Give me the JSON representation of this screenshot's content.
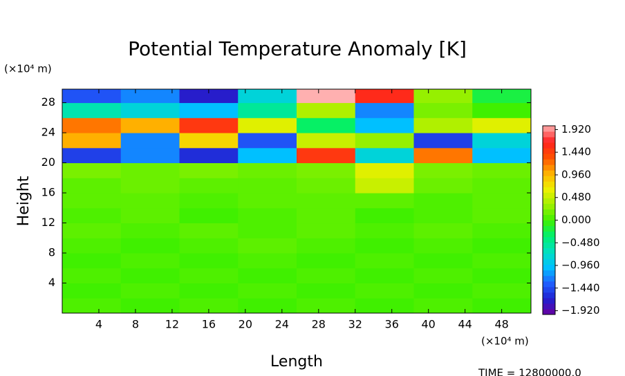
{
  "chart_data": {
    "type": "heatmap",
    "title": "Potential Temperature Anomaly [K]",
    "x_label": "Length",
    "y_label": "Height",
    "x_unit": "(×10⁴ m)",
    "y_unit": "(×10⁴ m)",
    "footer": "TIME = 12800000.0",
    "xlim": [
      0,
      51.2
    ],
    "ylim": [
      0,
      29.8
    ],
    "xticks": [
      4,
      8,
      12,
      16,
      20,
      24,
      28,
      32,
      36,
      40,
      44,
      48
    ],
    "yticks": [
      4,
      8,
      12,
      16,
      20,
      24,
      28
    ],
    "xedges": [
      0,
      6.4,
      12.8,
      19.2,
      25.6,
      32,
      38.4,
      44.8,
      51.2
    ],
    "yedges": [
      0,
      2,
      4,
      6,
      8,
      10,
      12,
      14,
      16,
      18,
      20,
      22,
      24,
      26,
      28,
      29.8
    ],
    "z": [
      [
        0.05,
        0.0,
        0.05,
        0.0,
        0.05,
        0.0,
        0.05,
        0.0
      ],
      [
        0.0,
        0.05,
        0.0,
        0.05,
        0.0,
        0.05,
        0.0,
        0.05
      ],
      [
        0.05,
        0.0,
        0.05,
        0.0,
        0.05,
        0.0,
        0.05,
        0.0
      ],
      [
        0.0,
        0.05,
        0.0,
        0.05,
        0.0,
        0.05,
        0.0,
        0.05
      ],
      [
        0.05,
        0.0,
        0.05,
        0.1,
        0.05,
        0.0,
        0.05,
        0.0
      ],
      [
        0.1,
        0.05,
        0.1,
        0.05,
        0.1,
        0.05,
        0.1,
        0.05
      ],
      [
        0.05,
        0.1,
        0.0,
        0.05,
        0.1,
        0.0,
        0.05,
        0.1
      ],
      [
        0.1,
        0.1,
        0.05,
        0.1,
        0.1,
        0.1,
        0.05,
        0.1
      ],
      [
        0.1,
        0.15,
        0.1,
        0.1,
        0.15,
        0.5,
        0.15,
        0.1
      ],
      [
        0.2,
        0.15,
        0.2,
        0.15,
        0.2,
        0.6,
        0.2,
        0.15
      ],
      [
        -1.5,
        -1.2,
        -1.6,
        -1.0,
        1.5,
        -0.8,
        1.2,
        -1.0
      ],
      [
        1.0,
        -1.2,
        0.8,
        -1.4,
        0.5,
        0.3,
        -1.5,
        -0.8
      ],
      [
        1.2,
        1.0,
        1.5,
        0.6,
        -0.3,
        -1.0,
        0.4,
        0.6
      ],
      [
        -0.6,
        -0.8,
        -1.0,
        -0.5,
        0.4,
        -1.2,
        0.2,
        0.0
      ],
      [
        -1.4,
        -1.2,
        -1.7,
        -0.8,
        2.0,
        1.6,
        0.3,
        -0.2
      ]
    ],
    "clim": [
      -2.0,
      2.0
    ],
    "colormap": [
      "#6a00a0",
      "#2020d0",
      "#2060ff",
      "#00c0ff",
      "#00e0c0",
      "#00f070",
      "#40f000",
      "#a0f000",
      "#f0f000",
      "#ffb000",
      "#ff5000",
      "#ff2020",
      "#ffb0b0"
    ],
    "cticks": [
      {
        "value": 1.92,
        "label": "1.920"
      },
      {
        "value": 1.44,
        "label": "1.440"
      },
      {
        "value": 0.96,
        "label": "0.960"
      },
      {
        "value": 0.48,
        "label": "0.480"
      },
      {
        "value": 0,
        "label": "0.000"
      },
      {
        "value": -0.48,
        "label": "−0.480"
      },
      {
        "value": -0.96,
        "label": "−0.960"
      },
      {
        "value": -1.44,
        "label": "−1.440"
      },
      {
        "value": -1.92,
        "label": "−1.920"
      }
    ]
  }
}
